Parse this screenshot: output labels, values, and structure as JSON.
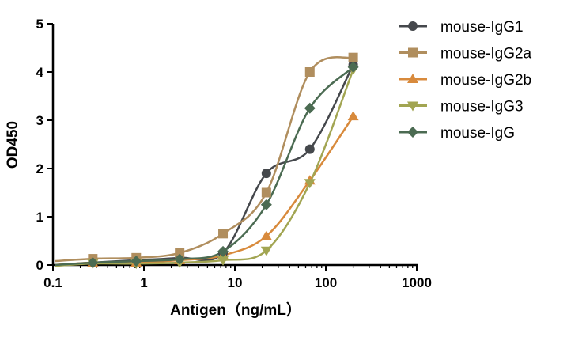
{
  "chart_data": {
    "type": "scatter",
    "title": "",
    "xlabel": "Antigen（ng/mL）",
    "ylabel": "OD450",
    "xscale": "log",
    "xlim": [
      0.1,
      1000
    ],
    "ylim": [
      0,
      5
    ],
    "xticks": [
      "0.1",
      "1",
      "10",
      "100",
      "1000"
    ],
    "yticks": [
      "0",
      "1",
      "2",
      "3",
      "4",
      "5"
    ],
    "grid": false,
    "legend_position": "top-right",
    "x": [
      0.274,
      0.823,
      2.47,
      7.41,
      22.2,
      66.7,
      200
    ],
    "series": [
      {
        "name": "mouse-IgG1",
        "marker": "circle",
        "color": "#45484c",
        "values": [
          0.05,
          0.1,
          0.15,
          0.25,
          1.9,
          2.4,
          4.15
        ]
      },
      {
        "name": "mouse-IgG2a",
        "marker": "square",
        "color": "#b08e5e",
        "values": [
          0.13,
          0.15,
          0.25,
          0.65,
          1.5,
          4.0,
          4.3
        ]
      },
      {
        "name": "mouse-IgG2b",
        "marker": "triangle-up",
        "color": "#d88a3c",
        "values": [
          0.05,
          0.05,
          0.1,
          0.2,
          0.6,
          1.75,
          3.08
        ]
      },
      {
        "name": "mouse-IgG3",
        "marker": "triangle-down",
        "color": "#a2a552",
        "values": [
          0.03,
          0.03,
          0.05,
          0.1,
          0.3,
          1.7,
          4.05
        ]
      },
      {
        "name": "mouse-IgG",
        "marker": "diamond",
        "color": "#4b6b52",
        "values": [
          0.05,
          0.08,
          0.12,
          0.28,
          1.25,
          3.25,
          4.1
        ]
      }
    ]
  }
}
